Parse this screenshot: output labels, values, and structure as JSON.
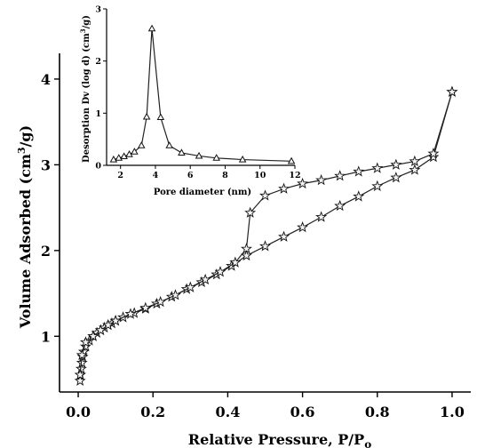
{
  "chart_data": [
    {
      "type": "line",
      "xlabel": "Relative Pressure, P/P",
      "xlabel_sub": "o",
      "ylabel": "Volume Adsorbed (cm",
      "ylabel_sup": "3",
      "ylabel_end": "/g)",
      "xlim": [
        -0.05,
        1.05
      ],
      "ylim": [
        0.35,
        4.3
      ],
      "x_ticks": [
        "0.0",
        "0.2",
        "0.4",
        "0.6",
        "0.8",
        "1.0"
      ],
      "x_tick_values": [
        0.0,
        0.2,
        0.4,
        0.6,
        0.8,
        1.0
      ],
      "y_ticks": [
        "1",
        "2",
        "3",
        "4"
      ],
      "y_tick_values": [
        1,
        2,
        3,
        4
      ],
      "grid": false,
      "marker": "star",
      "series": [
        {
          "x": [
            0.005,
            0.006,
            0.008,
            0.01,
            0.012,
            0.015,
            0.02,
            0.03,
            0.04,
            0.05,
            0.06,
            0.07,
            0.08,
            0.09,
            0.1,
            0.12,
            0.15,
            0.18,
            0.21,
            0.25,
            0.29,
            0.33,
            0.37,
            0.41,
            0.45,
            0.5,
            0.55,
            0.6,
            0.65,
            0.7,
            0.75,
            0.8,
            0.85,
            0.9,
            0.95,
            1.0
          ],
          "y": [
            0.48,
            0.55,
            0.62,
            0.69,
            0.76,
            0.82,
            0.88,
            0.95,
            1.0,
            1.04,
            1.07,
            1.1,
            1.13,
            1.15,
            1.18,
            1.22,
            1.27,
            1.32,
            1.38,
            1.46,
            1.55,
            1.63,
            1.72,
            1.82,
            1.94,
            2.05,
            2.16,
            2.27,
            2.39,
            2.52,
            2.63,
            2.75,
            2.85,
            2.94,
            3.09,
            3.85
          ]
        },
        {
          "x": [
            1.0,
            0.95,
            0.9,
            0.85,
            0.8,
            0.75,
            0.7,
            0.65,
            0.6,
            0.55,
            0.5,
            0.46,
            0.45,
            0.42,
            0.38,
            0.34,
            0.3,
            0.26,
            0.22,
            0.18,
            0.14,
            0.1,
            0.08,
            0.06,
            0.04,
            0.02,
            0.01,
            0.005
          ],
          "y": [
            3.85,
            3.13,
            3.04,
            3.0,
            2.96,
            2.92,
            2.87,
            2.82,
            2.78,
            2.72,
            2.64,
            2.44,
            2.02,
            1.86,
            1.75,
            1.66,
            1.57,
            1.48,
            1.4,
            1.33,
            1.26,
            1.18,
            1.13,
            1.07,
            1.0,
            0.93,
            0.78,
            0.55
          ]
        }
      ]
    },
    {
      "type": "line",
      "xlabel": "Pore diameter (nm)",
      "ylabel": "Desorption Dv (log d) (cm",
      "ylabel_sup": "3",
      "ylabel_end": "/g)",
      "xlim": [
        1.2,
        12
      ],
      "ylim": [
        0,
        3
      ],
      "x_ticks": [
        "2",
        "4",
        "6",
        "8",
        "10",
        "12"
      ],
      "x_tick_values": [
        2,
        4,
        6,
        8,
        10,
        12
      ],
      "y_ticks": [
        "0",
        "1",
        "2",
        "3"
      ],
      "y_tick_values": [
        0,
        1,
        2,
        3
      ],
      "grid": false,
      "marker": "triangle",
      "series": [
        {
          "x": [
            1.6,
            1.9,
            2.2,
            2.5,
            2.8,
            3.2,
            3.5,
            3.8,
            4.3,
            4.8,
            5.5,
            6.5,
            7.5,
            9.0,
            11.8
          ],
          "y": [
            0.11,
            0.14,
            0.17,
            0.21,
            0.26,
            0.38,
            0.93,
            2.62,
            0.92,
            0.38,
            0.24,
            0.18,
            0.14,
            0.11,
            0.08
          ]
        }
      ]
    }
  ]
}
